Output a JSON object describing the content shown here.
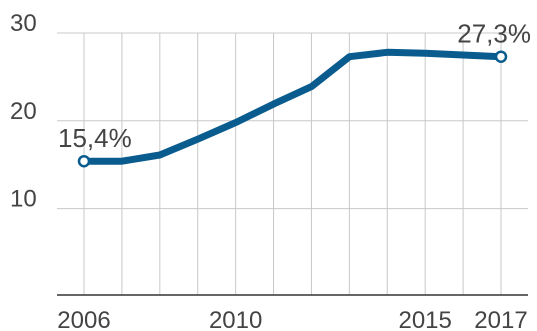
{
  "chart_data": {
    "type": "line",
    "x": [
      2006,
      2007,
      2008,
      2009,
      2010,
      2011,
      2012,
      2013,
      2014,
      2015,
      2016,
      2017
    ],
    "series": [
      {
        "values": [
          15.4,
          15.4,
          16.1,
          17.9,
          19.8,
          21.9,
          23.9,
          27.3,
          27.8,
          27.7,
          27.5,
          27.3
        ]
      }
    ],
    "title": "",
    "xlabel": "",
    "ylabel": "",
    "xlim": [
      2006,
      2017
    ],
    "ylim": [
      0,
      30
    ],
    "x_ticks": [
      2006,
      2010,
      2015,
      2017
    ],
    "y_ticks": [
      10,
      20,
      30
    ],
    "x_tick_labels": [
      "2006",
      "2010",
      "2015",
      "2017"
    ],
    "y_tick_labels": [
      "10",
      "20",
      "30"
    ],
    "annotations": [
      {
        "x": 2006,
        "text": "15,4%"
      },
      {
        "x": 2017,
        "text": "27,3%"
      }
    ],
    "grid": true,
    "colors": {
      "line": "#0a5c8f",
      "grid": "#c8c8c8",
      "axis": "#333333",
      "text": "#444444"
    }
  }
}
